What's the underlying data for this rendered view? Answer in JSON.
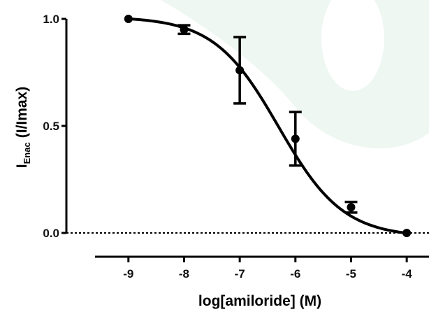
{
  "chart_data": {
    "type": "scatter",
    "title": "",
    "xlabel": "log[amiloride] (M)",
    "ylabel_main": "I",
    "ylabel_sub": "Enac",
    "ylabel_rest": "(I/Imax)",
    "xlim": [
      -9.6,
      -3.6
    ],
    "ylim": [
      0.0,
      1.0
    ],
    "x_ticks": [
      -9,
      -8,
      -7,
      -6,
      -5,
      -4
    ],
    "x_tick_labels": [
      "-9",
      "-8",
      "-7",
      "-6",
      "-5",
      "-4"
    ],
    "y_ticks": [
      0.0,
      0.5,
      1.0
    ],
    "y_tick_labels": [
      "0.0",
      "0.5",
      "1.0"
    ],
    "baseline_y": 0.0,
    "grid": false,
    "series": [
      {
        "x": [
          -9,
          -8,
          -7,
          -6,
          -5,
          -4
        ],
        "y": [
          1.0,
          0.95,
          0.76,
          0.44,
          0.12,
          0.0
        ],
        "error": [
          0.0,
          0.02,
          0.155,
          0.125,
          0.025,
          0.0
        ]
      }
    ],
    "fit": {
      "model": "sigmoidal dose-response",
      "top": 1.01,
      "bottom": -0.02,
      "logIC50": -6.3,
      "hill_slope": -0.75
    }
  }
}
